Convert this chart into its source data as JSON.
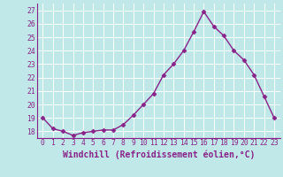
{
  "x": [
    0,
    1,
    2,
    3,
    4,
    5,
    6,
    7,
    8,
    9,
    10,
    11,
    12,
    13,
    14,
    15,
    16,
    17,
    18,
    19,
    20,
    21,
    22,
    23
  ],
  "y": [
    19.0,
    18.2,
    18.0,
    17.7,
    17.9,
    18.0,
    18.1,
    18.1,
    18.5,
    19.2,
    20.0,
    20.8,
    22.2,
    23.0,
    24.0,
    25.4,
    26.9,
    25.8,
    25.1,
    24.0,
    23.3,
    22.2,
    20.6,
    19.0
  ],
  "line_color": "#882288",
  "marker": "D",
  "marker_size": 2.5,
  "bg_color": "#c0e8e8",
  "grid_color": "#ffffff",
  "xlabel": "Windchill (Refroidissement éolien,°C)",
  "xlabel_color": "#882288",
  "ylim": [
    17.5,
    27.5
  ],
  "yticks": [
    18,
    19,
    20,
    21,
    22,
    23,
    24,
    25,
    26,
    27
  ],
  "xticks": [
    0,
    1,
    2,
    3,
    4,
    5,
    6,
    7,
    8,
    9,
    10,
    11,
    12,
    13,
    14,
    15,
    16,
    17,
    18,
    19,
    20,
    21,
    22,
    23
  ],
  "tick_label_color": "#882288",
  "tick_label_fontsize": 5.8,
  "xlabel_fontsize": 7.0,
  "line_width": 1.0
}
